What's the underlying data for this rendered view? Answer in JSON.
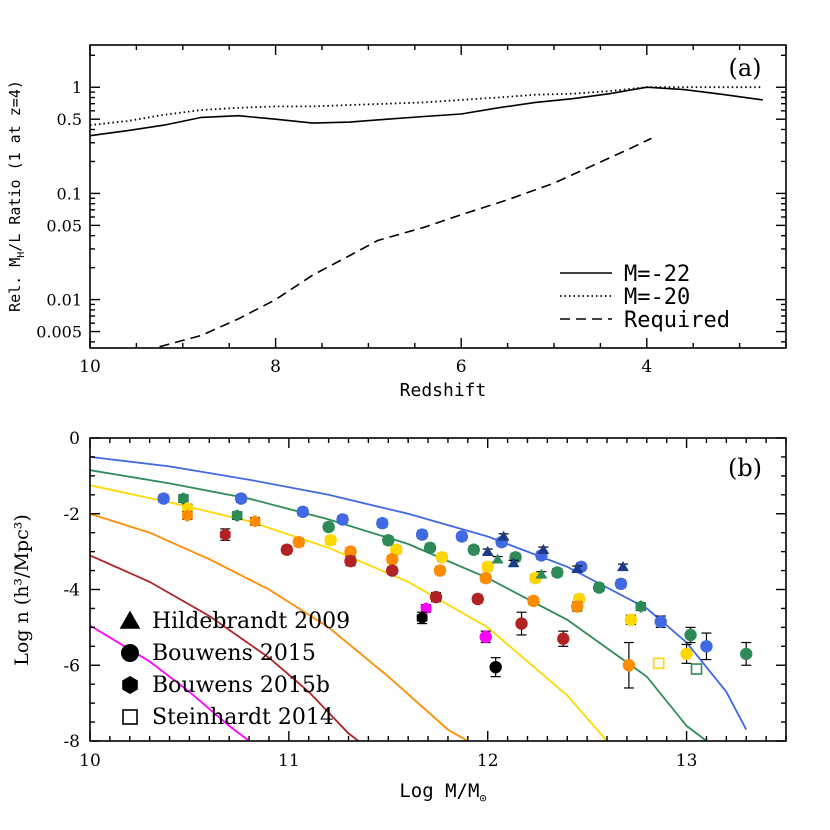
{
  "chart_data": [
    {
      "type": "line",
      "panel_label": "(a)",
      "xlabel": "Redshift",
      "ylabel": "Rel. M_H/L Ratio (1 at z=4)",
      "ylabel_parts": {
        "a": "Rel. M",
        "sub": "H",
        "b": "/L Ratio (1 at z=4)"
      },
      "xlim": [
        10,
        2.5
      ],
      "ylim": [
        0.0035,
        2.5
      ],
      "yscale": "log",
      "x_ticks": [
        "10",
        "8",
        "6",
        "4"
      ],
      "y_ticks": [
        "1",
        "0.5",
        "0.1",
        "0.05",
        "0.01",
        "0.005"
      ],
      "legend_position": "bottom-right",
      "series": [
        {
          "name": "M=-22",
          "style": "solid",
          "x": [
            10,
            9.6,
            9.2,
            8.8,
            8.4,
            8.0,
            7.6,
            7.2,
            6.8,
            6.4,
            6.0,
            5.6,
            5.2,
            4.8,
            4.4,
            4.0,
            3.6,
            3.2,
            2.75
          ],
          "y": [
            0.35,
            0.39,
            0.44,
            0.52,
            0.54,
            0.5,
            0.46,
            0.47,
            0.5,
            0.53,
            0.56,
            0.64,
            0.72,
            0.78,
            0.87,
            1.0,
            0.95,
            0.86,
            0.76
          ]
        },
        {
          "name": "M=-20",
          "style": "dotted",
          "x": [
            10,
            9.6,
            9.2,
            8.8,
            8.4,
            8.0,
            7.6,
            7.2,
            6.8,
            6.4,
            6.0,
            5.6,
            5.2,
            4.8,
            4.4,
            4.0,
            3.6,
            3.2,
            2.75
          ],
          "y": [
            0.44,
            0.48,
            0.55,
            0.61,
            0.64,
            0.66,
            0.66,
            0.68,
            0.7,
            0.72,
            0.76,
            0.8,
            0.85,
            0.87,
            0.92,
            1.0,
            1.0,
            1.0,
            1.0
          ]
        },
        {
          "name": "Required",
          "style": "dashed",
          "x": [
            9.25,
            8.8,
            8.4,
            8.0,
            7.6,
            7.2,
            6.9,
            6.4,
            6.0,
            5.5,
            5.0,
            4.6,
            4.2,
            3.95
          ],
          "y": [
            0.0036,
            0.0046,
            0.0066,
            0.01,
            0.017,
            0.026,
            0.036,
            0.048,
            0.063,
            0.087,
            0.125,
            0.18,
            0.26,
            0.33
          ]
        }
      ]
    },
    {
      "type": "scatter",
      "panel_label": "(b)",
      "xlabel": "Log M/M",
      "xlabel_sub": "⊙",
      "ylabel": "Log n (h³/Mpc³)",
      "xlim": [
        10,
        13.5
      ],
      "ylim": [
        -8,
        0
      ],
      "x_ticks": [
        "10",
        "11",
        "12",
        "13"
      ],
      "y_ticks": [
        "0",
        "-2",
        "-4",
        "-6",
        "-8"
      ],
      "legend_position": "bottom-left",
      "legend": [
        {
          "symbol": "triangle",
          "label": "Hildebrandt 2009"
        },
        {
          "symbol": "circle",
          "label": "Bouwens 2015"
        },
        {
          "symbol": "hexagon",
          "label": "Bouwens 2015b"
        },
        {
          "symbol": "open-square",
          "label": "Steinhardt 2014"
        }
      ],
      "curves": [
        {
          "color": "#4169e1",
          "x": [
            10,
            10.4,
            10.8,
            11.2,
            11.6,
            12.0,
            12.4,
            12.8,
            13.0,
            13.2,
            13.3
          ],
          "y": [
            -0.5,
            -0.75,
            -1.1,
            -1.5,
            -2.0,
            -2.6,
            -3.4,
            -4.5,
            -5.4,
            -6.7,
            -7.7
          ]
        },
        {
          "color": "#2e8b57",
          "x": [
            10,
            10.4,
            10.8,
            11.2,
            11.6,
            12.0,
            12.4,
            12.8,
            13.0,
            13.1
          ],
          "y": [
            -0.85,
            -1.2,
            -1.6,
            -2.15,
            -2.8,
            -3.7,
            -4.8,
            -6.3,
            -7.6,
            -8.0
          ]
        },
        {
          "color": "#ffd700",
          "x": [
            10,
            10.4,
            10.8,
            11.2,
            11.6,
            12.0,
            12.4,
            12.6
          ],
          "y": [
            -1.25,
            -1.7,
            -2.2,
            -2.9,
            -3.8,
            -5.0,
            -6.8,
            -8.0
          ]
        },
        {
          "color": "#ff8c00",
          "x": [
            10,
            10.3,
            10.6,
            10.9,
            11.2,
            11.5,
            11.8,
            11.9
          ],
          "y": [
            -2.0,
            -2.5,
            -3.2,
            -4.0,
            -5.0,
            -6.3,
            -7.7,
            -8.0
          ]
        },
        {
          "color": "#b22222",
          "x": [
            10,
            10.3,
            10.6,
            10.9,
            11.1,
            11.3,
            11.35
          ],
          "y": [
            -3.1,
            -3.8,
            -4.7,
            -5.8,
            -6.7,
            -7.8,
            -8.0
          ]
        },
        {
          "color": "#ff00ff",
          "x": [
            10,
            10.3,
            10.5,
            10.7,
            10.8
          ],
          "y": [
            -4.95,
            -5.9,
            -6.7,
            -7.6,
            -8.0
          ]
        }
      ],
      "points": [
        {
          "c": "#4169e1",
          "s": "circle",
          "x": 10.37,
          "y": -1.6,
          "e": 0.1
        },
        {
          "c": "#4169e1",
          "s": "circle",
          "x": 10.76,
          "y": -1.6,
          "e": 0.1
        },
        {
          "c": "#4169e1",
          "s": "circle",
          "x": 11.07,
          "y": -1.95,
          "e": 0.1
        },
        {
          "c": "#4169e1",
          "s": "circle",
          "x": 11.27,
          "y": -2.15,
          "e": 0.1
        },
        {
          "c": "#4169e1",
          "s": "circle",
          "x": 11.47,
          "y": -2.25,
          "e": 0.1
        },
        {
          "c": "#4169e1",
          "s": "circle",
          "x": 11.67,
          "y": -2.55,
          "e": 0.1
        },
        {
          "c": "#4169e1",
          "s": "circle",
          "x": 11.87,
          "y": -2.6,
          "e": 0.1
        },
        {
          "c": "#4169e1",
          "s": "circle",
          "x": 12.07,
          "y": -2.75,
          "e": 0.1
        },
        {
          "c": "#4169e1",
          "s": "circle",
          "x": 12.27,
          "y": -3.1,
          "e": 0.1
        },
        {
          "c": "#4169e1",
          "s": "circle",
          "x": 12.47,
          "y": -3.4,
          "e": 0.1
        },
        {
          "c": "#4169e1",
          "s": "circle",
          "x": 12.67,
          "y": -3.85,
          "e": 0.1
        },
        {
          "c": "#4169e1",
          "s": "circle",
          "x": 12.87,
          "y": -4.85,
          "e": 0.15
        },
        {
          "c": "#4169e1",
          "s": "circle",
          "x": 13.1,
          "y": -5.5,
          "e": 0.35
        },
        {
          "c": "#2e8b57",
          "s": "hexagon",
          "x": 10.47,
          "y": -1.6,
          "e": 0.1
        },
        {
          "c": "#2e8b57",
          "s": "hexagon",
          "x": 10.74,
          "y": -2.05,
          "e": 0.1
        },
        {
          "c": "#2e8b57",
          "s": "circle",
          "x": 11.2,
          "y": -2.35,
          "e": 0.1
        },
        {
          "c": "#2e8b57",
          "s": "circle",
          "x": 11.5,
          "y": -2.7,
          "e": 0.1
        },
        {
          "c": "#2e8b57",
          "s": "circle",
          "x": 11.71,
          "y": -2.9,
          "e": 0.1
        },
        {
          "c": "#2e8b57",
          "s": "circle",
          "x": 11.93,
          "y": -2.95,
          "e": 0.1
        },
        {
          "c": "#2e8b57",
          "s": "circle",
          "x": 12.14,
          "y": -3.15,
          "e": 0.1
        },
        {
          "c": "#2e8b57",
          "s": "circle",
          "x": 12.35,
          "y": -3.55,
          "e": 0.1
        },
        {
          "c": "#2e8b57",
          "s": "circle",
          "x": 12.56,
          "y": -3.95,
          "e": 0.1
        },
        {
          "c": "#2e8b57",
          "s": "hexagon",
          "x": 12.77,
          "y": -4.45,
          "e": 0.1
        },
        {
          "c": "#2e8b57",
          "s": "circle",
          "x": 13.02,
          "y": -5.2,
          "e": 0.2
        },
        {
          "c": "#2e8b57",
          "s": "circle",
          "x": 13.3,
          "y": -5.7,
          "e": 0.3
        },
        {
          "c": "#ffd700",
          "s": "hexagon",
          "x": 10.49,
          "y": -1.85,
          "e": 0.1
        },
        {
          "c": "#ffd700",
          "s": "circle",
          "x": 11.21,
          "y": -2.7,
          "e": 0.1
        },
        {
          "c": "#ffd700",
          "s": "circle",
          "x": 11.54,
          "y": -2.95,
          "e": 0.1
        },
        {
          "c": "#ffd700",
          "s": "circle",
          "x": 11.77,
          "y": -3.15,
          "e": 0.1
        },
        {
          "c": "#ffd700",
          "s": "circle",
          "x": 12.0,
          "y": -3.4,
          "e": 0.1
        },
        {
          "c": "#ffd700",
          "s": "circle",
          "x": 12.24,
          "y": -3.7,
          "e": 0.1
        },
        {
          "c": "#ffd700",
          "s": "circle",
          "x": 12.46,
          "y": -4.25,
          "e": 0.1
        },
        {
          "c": "#ffd700",
          "s": "circle",
          "x": 12.72,
          "y": -4.8,
          "e": 0.12
        },
        {
          "c": "#ffd700",
          "s": "circle",
          "x": 13.0,
          "y": -5.7,
          "e": 0.25
        },
        {
          "c": "#ff8c00",
          "s": "hexagon",
          "x": 10.49,
          "y": -2.05,
          "e": 0.1
        },
        {
          "c": "#ff8c00",
          "s": "hexagon",
          "x": 10.83,
          "y": -2.2,
          "e": 0.1
        },
        {
          "c": "#ff8c00",
          "s": "circle",
          "x": 11.05,
          "y": -2.75,
          "e": 0.1
        },
        {
          "c": "#ff8c00",
          "s": "circle",
          "x": 11.31,
          "y": -3.0,
          "e": 0.1
        },
        {
          "c": "#ff8c00",
          "s": "circle",
          "x": 11.52,
          "y": -3.2,
          "e": 0.1
        },
        {
          "c": "#ff8c00",
          "s": "circle",
          "x": 11.76,
          "y": -3.5,
          "e": 0.1
        },
        {
          "c": "#ff8c00",
          "s": "circle",
          "x": 11.99,
          "y": -3.7,
          "e": 0.1
        },
        {
          "c": "#ff8c00",
          "s": "circle",
          "x": 12.23,
          "y": -4.3,
          "e": 0.1
        },
        {
          "c": "#ff8c00",
          "s": "circle",
          "x": 12.45,
          "y": -4.45,
          "e": 0.12
        },
        {
          "c": "#ff8c00",
          "s": "circle",
          "x": 12.71,
          "y": -6.0,
          "e": 0.6
        },
        {
          "c": "#b22222",
          "s": "hexagon",
          "x": 10.68,
          "y": -2.55,
          "e": 0.15
        },
        {
          "c": "#b22222",
          "s": "circle",
          "x": 10.99,
          "y": -2.95,
          "e": 0.1
        },
        {
          "c": "#b22222",
          "s": "circle",
          "x": 11.31,
          "y": -3.25,
          "e": 0.12
        },
        {
          "c": "#b22222",
          "s": "circle",
          "x": 11.52,
          "y": -3.5,
          "e": 0.1
        },
        {
          "c": "#b22222",
          "s": "circle",
          "x": 11.74,
          "y": -4.2,
          "e": 0.12
        },
        {
          "c": "#b22222",
          "s": "circle",
          "x": 11.95,
          "y": -4.25,
          "e": 0.1
        },
        {
          "c": "#b22222",
          "s": "circle",
          "x": 12.17,
          "y": -4.9,
          "e": 0.3
        },
        {
          "c": "#b22222",
          "s": "circle",
          "x": 12.38,
          "y": -5.3,
          "e": 0.2
        },
        {
          "c": "#ff00ff",
          "s": "hexagon",
          "x": 11.69,
          "y": -4.5,
          "e": 0.1
        },
        {
          "c": "#ff00ff",
          "s": "circle",
          "x": 11.99,
          "y": -5.25,
          "e": 0.15
        },
        {
          "c": "#000000",
          "s": "hexagon",
          "x": 11.67,
          "y": -4.75,
          "e": 0.15
        },
        {
          "c": "#000000",
          "s": "circle",
          "x": 12.04,
          "y": -6.05,
          "e": 0.25
        },
        {
          "c": "#1e3a8a",
          "s": "triangle",
          "x": 12.0,
          "y": -3.0,
          "e": 0.07
        },
        {
          "c": "#1e3a8a",
          "s": "triangle",
          "x": 12.08,
          "y": -2.6,
          "e": 0.07
        },
        {
          "c": "#1e3a8a",
          "s": "triangle",
          "x": 12.13,
          "y": -3.3,
          "e": 0.07
        },
        {
          "c": "#1e3a8a",
          "s": "triangle",
          "x": 12.28,
          "y": -2.95,
          "e": 0.07
        },
        {
          "c": "#1e3a8a",
          "s": "triangle",
          "x": 12.45,
          "y": -3.45,
          "e": 0.07
        },
        {
          "c": "#1e3a8a",
          "s": "triangle",
          "x": 12.68,
          "y": -3.4,
          "e": 0.07
        },
        {
          "c": "#2e8b57",
          "s": "triangle",
          "x": 12.05,
          "y": -3.2,
          "e": 0.07
        },
        {
          "c": "#2e8b57",
          "s": "triangle",
          "x": 12.27,
          "y": -3.6,
          "e": 0.07
        },
        {
          "c": "#ffd700",
          "s": "open-square",
          "x": 12.86,
          "y": -5.95,
          "e": 0.1
        },
        {
          "c": "#2e8b57",
          "s": "open-square",
          "x": 13.05,
          "y": -6.1,
          "e": 0.08
        }
      ]
    }
  ]
}
